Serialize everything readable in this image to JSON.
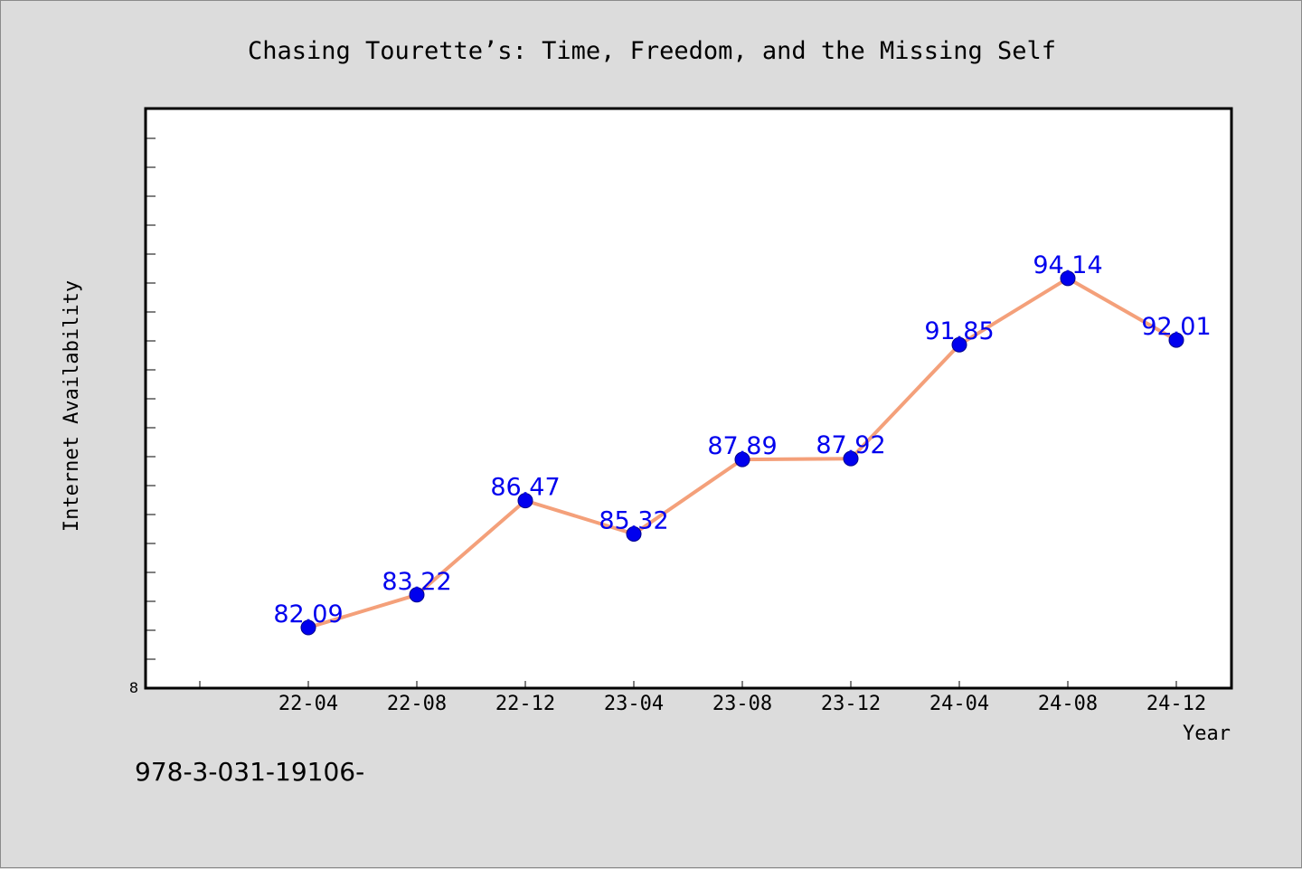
{
  "chart_data": {
    "type": "line",
    "title": "Chasing Tourette’s: Time, Freedom, and the Missing Self",
    "xlabel": "Year",
    "ylabel": "Internet Availability",
    "categories": [
      "22-04",
      "22-08",
      "22-12",
      "23-04",
      "23-08",
      "23-12",
      "24-04",
      "24-08",
      "24-12"
    ],
    "series": [
      {
        "values": [
          82.09,
          83.22,
          86.47,
          85.32,
          87.89,
          87.92,
          91.85,
          94.14,
          92.01
        ],
        "labels": [
          "82.09",
          "83.22",
          "86.47",
          "85.32",
          "87.89",
          "87.92",
          "91.85",
          "94.14",
          "92.01"
        ],
        "line_color": "#f4a07a",
        "marker_color": "#0000ee"
      }
    ],
    "ylim": [
      80,
      100
    ],
    "y_tick_label": "8",
    "grid": false,
    "legend": "none"
  },
  "footer": {
    "isbn": "978-3-031-19106-"
  }
}
